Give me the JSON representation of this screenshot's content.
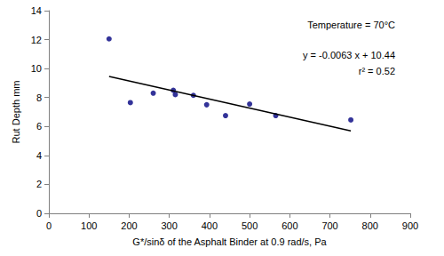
{
  "chart_data": {
    "type": "scatter",
    "x_label": "G*/sinδ of the Asphalt Binder at 0.9 rad/s, Pa",
    "y_label": "Rut Depth mm",
    "annotations": [
      "Temperature = 70°C",
      "y = -0.0063 x + 10.44",
      "r² = 0.52"
    ],
    "x": [
      150,
      203,
      260,
      310,
      315,
      360,
      393,
      440,
      500,
      565,
      752
    ],
    "values": [
      12.05,
      7.65,
      8.3,
      8.5,
      8.2,
      8.15,
      7.5,
      6.75,
      7.55,
      6.75,
      6.45
    ],
    "color": "#000080",
    "marker": "circle",
    "trend": {
      "x": [
        150,
        752
      ],
      "values": [
        9.45,
        5.7
      ],
      "color": "#000000",
      "line_style": "solid"
    },
    "xlim": [
      0,
      900
    ],
    "xticks": [
      0,
      100,
      200,
      300,
      400,
      500,
      600,
      700,
      800,
      900
    ],
    "ylim": [
      0,
      14
    ],
    "yticks": [
      0,
      2,
      4,
      6,
      8,
      10,
      12,
      14
    ],
    "grid": false
  }
}
